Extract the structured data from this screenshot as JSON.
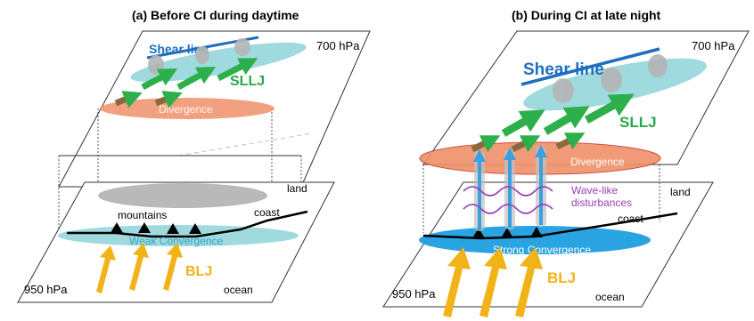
{
  "panels": {
    "a": {
      "title": "(a) Before CI during daytime",
      "upper_level": "700 hPa",
      "lower_level": "950 hPa",
      "shear_line": "Shear line",
      "sllj": "SLLJ",
      "divergence": "Divergence",
      "land": "land",
      "coast": "coast",
      "mountains": "mountains",
      "convergence": "Weak Convergence",
      "blj": "BLJ",
      "ocean": "ocean"
    },
    "b": {
      "title": "(b) During CI at late night",
      "upper_level": "700 hPa",
      "lower_level": "950 hPa",
      "shear_line": "Shear line",
      "sllj": "SLLJ",
      "divergence": "Divergence",
      "wave_line1": "Wave-like",
      "wave_line2": "disturbances",
      "land": "land",
      "coast": "coast",
      "convergence": "Strong Convergence",
      "blj": "BLJ",
      "ocean": "ocean"
    }
  },
  "colors": {
    "shear_line": "#1f6fc0",
    "sllj_arrow": "#2db04b",
    "sllj_text": "#2aa845",
    "divergence_fill": "#f0906a",
    "convergence_weak": "#8ed4d8",
    "convergence_strong": "#1e9ee0",
    "blj": "#f2b318",
    "wave": "#9a3fb8",
    "updraft": "#3aa0e0"
  }
}
